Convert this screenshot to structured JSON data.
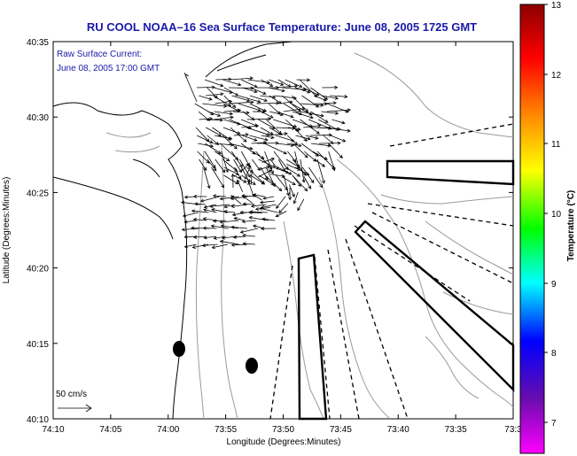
{
  "title": "RU COOL  NOAA–16  Sea Surface Temperature:  June 08, 2005 1725 GMT",
  "annotation": {
    "line1": "Raw Surface Current:",
    "line2": "June 08, 2005 17:00 GMT"
  },
  "scale": {
    "label": "50 cm/s"
  },
  "axes": {
    "xlabel": "Longitude (Degrees:Minutes)",
    "ylabel": "Latitude (Degrees:Minutes)",
    "xticks": [
      "74:10",
      "74:05",
      "74:00",
      "73:55",
      "73:50",
      "73:45",
      "73:40",
      "73:35",
      "73:3"
    ],
    "yticks": [
      "40:35",
      "40:30",
      "40:25",
      "40:20",
      "40:15",
      "40:10"
    ]
  },
  "colorbar": {
    "label": "Temperature (°C)",
    "ticks": [
      "13",
      "12",
      "11",
      "10",
      "9",
      "8",
      "7"
    ],
    "colors": [
      "#8b0000",
      "#ff0000",
      "#ff8c00",
      "#ffff00",
      "#00ff00",
      "#00ffff",
      "#0000ff",
      "#6a0dad",
      "#ff00ff"
    ]
  }
}
